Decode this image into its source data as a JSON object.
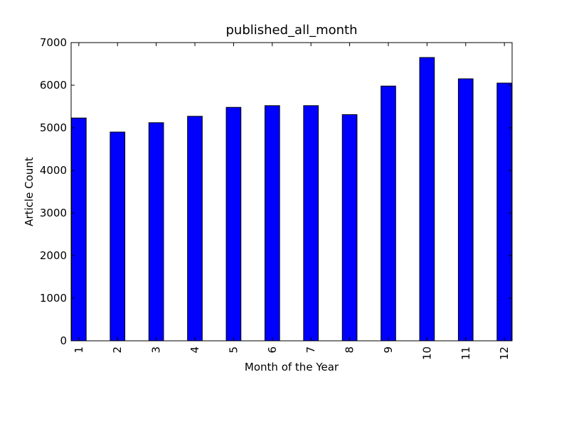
{
  "chart_data": {
    "type": "bar",
    "title": "published_all_month",
    "xlabel": "Month of the Year",
    "ylabel": "Article Count",
    "categories": [
      "1",
      "2",
      "3",
      "4",
      "5",
      "6",
      "7",
      "8",
      "9",
      "10",
      "11",
      "12"
    ],
    "values": [
      5230,
      4900,
      5120,
      5270,
      5480,
      5520,
      5520,
      5310,
      5980,
      6650,
      6150,
      6050
    ],
    "ylim": [
      0,
      7000
    ],
    "yticks": [
      "0",
      "1000",
      "2000",
      "3000",
      "4000",
      "5000",
      "6000",
      "7000"
    ],
    "bar_color": "#0000ff",
    "grid": false,
    "legend": "none"
  }
}
